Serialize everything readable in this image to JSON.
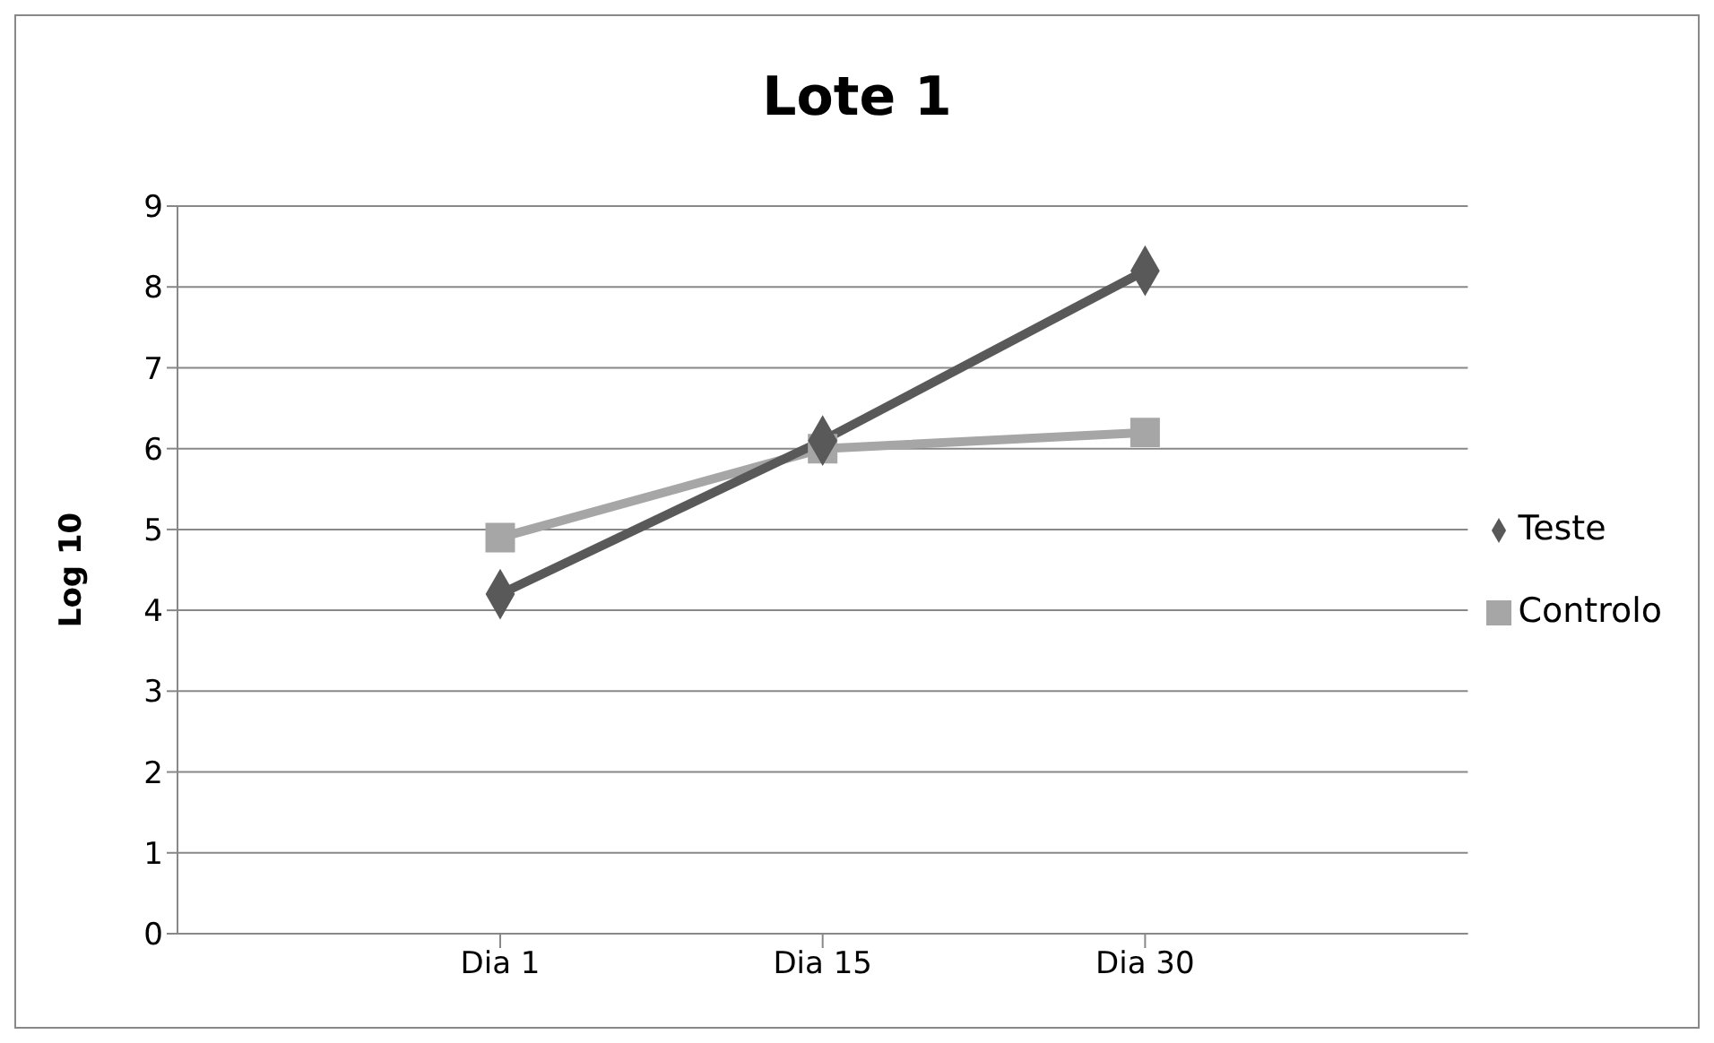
{
  "chart_data": {
    "type": "line",
    "title": "Lote 1",
    "ylabel": "Log 10",
    "categories": [
      "Dia 1",
      "Dia 15",
      "Dia 30"
    ],
    "series": [
      {
        "name": "Teste",
        "color": "#595959",
        "values": [
          4.2,
          6.1,
          8.2
        ],
        "marker": "diamond"
      },
      {
        "name": "Controlo",
        "color": "#a6a6a6",
        "values": [
          4.9,
          6.0,
          6.2
        ],
        "marker": "square"
      }
    ],
    "ylim": [
      0,
      9
    ],
    "yticks": [
      0,
      1,
      2,
      3,
      4,
      5,
      6,
      7,
      8,
      9
    ],
    "grid": "y",
    "legend": "right"
  }
}
